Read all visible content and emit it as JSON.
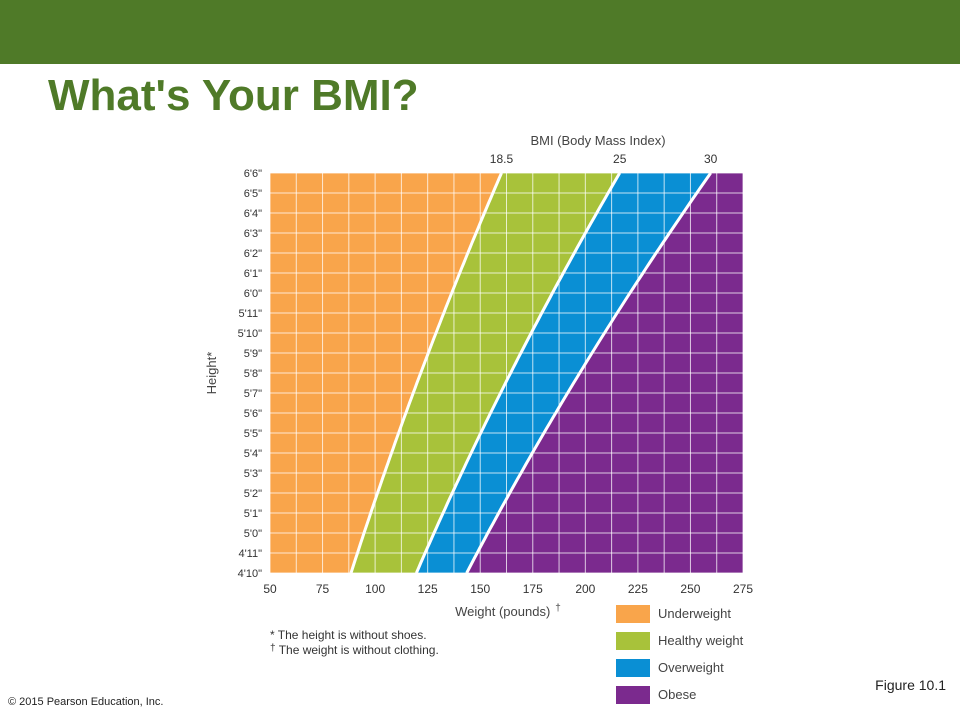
{
  "slide": {
    "title": "What's Your BMI?",
    "bar_color": "#4f7a28",
    "copyright": "© 2015 Pearson Education, Inc.",
    "figure_label": "Figure 10.1"
  },
  "chart_data": {
    "type": "area",
    "title": "BMI (Body Mass Index)",
    "xlabel": "Weight (pounds)",
    "xlabel_mark": "†",
    "ylabel": "Height*",
    "xlim": [
      50,
      275
    ],
    "x_ticks": [
      "50",
      "75",
      "100",
      "125",
      "150",
      "175",
      "200",
      "225",
      "250",
      "275"
    ],
    "ylim_inches": [
      58,
      78
    ],
    "y_ticks": [
      "4'10\"",
      "4'11\"",
      "5'0\"",
      "5'1\"",
      "5'2\"",
      "5'3\"",
      "5'4\"",
      "5'5\"",
      "5'6\"",
      "5'7\"",
      "5'8\"",
      "5'9\"",
      "5'10\"",
      "5'11\"",
      "6'0\"",
      "6'1\"",
      "6'2\"",
      "6'3\"",
      "6'4\"",
      "6'5\"",
      "6'6\""
    ],
    "bmi_thresholds": [
      {
        "label": "18.5",
        "bmi": 18.5
      },
      {
        "label": "25",
        "bmi": 25
      },
      {
        "label": "30",
        "bmi": 30
      }
    ],
    "categories": [
      {
        "name": "Underweight",
        "color": "#f9a54b"
      },
      {
        "name": "Healthy weight",
        "color": "#a8c23a"
      },
      {
        "name": "Overweight",
        "color": "#0a8fd4"
      },
      {
        "name": "Obese",
        "color": "#7b2a8e"
      }
    ],
    "grid": true
  },
  "footnotes": [
    {
      "symbol": "*",
      "text": "The height is without shoes."
    },
    {
      "symbol": "†",
      "text": "The weight is without clothing."
    }
  ]
}
